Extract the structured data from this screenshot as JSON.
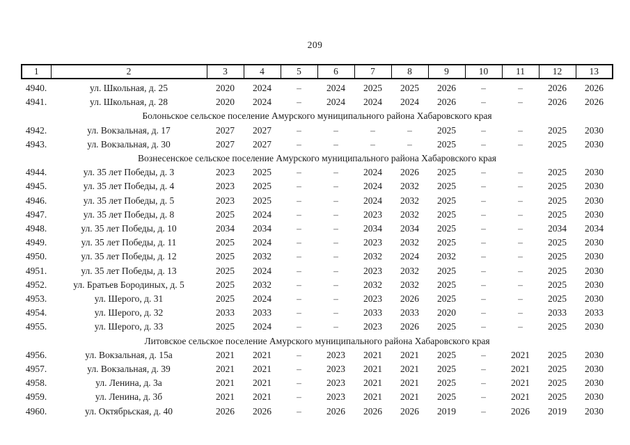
{
  "page": {
    "number": "209"
  },
  "table": {
    "header": [
      "1",
      "2",
      "3",
      "4",
      "5",
      "6",
      "7",
      "8",
      "9",
      "10",
      "11",
      "12",
      "13"
    ],
    "rows": [
      {
        "type": "data",
        "num": "4940.",
        "address": "ул. Школьная, д. 25",
        "values": [
          "2020",
          "2024",
          "–",
          "2024",
          "2025",
          "2025",
          "2026",
          "–",
          "–",
          "2026",
          "2026"
        ]
      },
      {
        "type": "data",
        "num": "4941.",
        "address": "ул. Школьная, д. 28",
        "values": [
          "2020",
          "2024",
          "–",
          "2024",
          "2024",
          "2024",
          "2026",
          "–",
          "–",
          "2026",
          "2026"
        ]
      },
      {
        "type": "section",
        "label": "Болоньское сельское поселение Амурского муниципального района Хабаровского края"
      },
      {
        "type": "data",
        "num": "4942.",
        "address": "ул. Вокзальная, д. 17",
        "values": [
          "2027",
          "2027",
          "–",
          "–",
          "–",
          "–",
          "2025",
          "–",
          "–",
          "2025",
          "2030"
        ]
      },
      {
        "type": "data",
        "num": "4943.",
        "address": "ул. Вокзальная, д. 30",
        "values": [
          "2027",
          "2027",
          "–",
          "–",
          "–",
          "–",
          "2025",
          "–",
          "–",
          "2025",
          "2030"
        ]
      },
      {
        "type": "section",
        "label": "Вознесенское сельское поселение Амурского муниципального района Хабаровского края"
      },
      {
        "type": "data",
        "num": "4944.",
        "address": "ул. 35 лет Победы, д. 3",
        "values": [
          "2023",
          "2025",
          "–",
          "–",
          "2024",
          "2026",
          "2025",
          "–",
          "–",
          "2025",
          "2030"
        ]
      },
      {
        "type": "data",
        "num": "4945.",
        "address": "ул. 35 лет Победы, д. 4",
        "values": [
          "2023",
          "2025",
          "–",
          "–",
          "2024",
          "2032",
          "2025",
          "–",
          "–",
          "2025",
          "2030"
        ]
      },
      {
        "type": "data",
        "num": "4946.",
        "address": "ул. 35 лет Победы, д. 5",
        "values": [
          "2023",
          "2025",
          "–",
          "–",
          "2024",
          "2032",
          "2025",
          "–",
          "–",
          "2025",
          "2030"
        ]
      },
      {
        "type": "data",
        "num": "4947.",
        "address": "ул. 35 лет Победы, д. 8",
        "values": [
          "2025",
          "2024",
          "–",
          "–",
          "2023",
          "2032",
          "2025",
          "–",
          "–",
          "2025",
          "2030"
        ]
      },
      {
        "type": "data",
        "num": "4948.",
        "address": "ул. 35 лет Победы, д. 10",
        "values": [
          "2034",
          "2034",
          "–",
          "–",
          "2034",
          "2034",
          "2025",
          "–",
          "–",
          "2034",
          "2034"
        ]
      },
      {
        "type": "data",
        "num": "4949.",
        "address": "ул. 35 лет Победы, д. 11",
        "values": [
          "2025",
          "2024",
          "–",
          "–",
          "2023",
          "2032",
          "2025",
          "–",
          "–",
          "2025",
          "2030"
        ]
      },
      {
        "type": "data",
        "num": "4950.",
        "address": "ул. 35 лет Победы, д. 12",
        "values": [
          "2025",
          "2032",
          "–",
          "–",
          "2032",
          "2024",
          "2032",
          "–",
          "–",
          "2025",
          "2030"
        ]
      },
      {
        "type": "data",
        "num": "4951.",
        "address": "ул. 35 лет Победы, д. 13",
        "values": [
          "2025",
          "2024",
          "–",
          "–",
          "2023",
          "2032",
          "2025",
          "–",
          "–",
          "2025",
          "2030"
        ]
      },
      {
        "type": "data",
        "num": "4952.",
        "address": "ул. Братьев Бородиных, д. 5",
        "values": [
          "2025",
          "2032",
          "–",
          "–",
          "2032",
          "2032",
          "2025",
          "–",
          "–",
          "2025",
          "2030"
        ]
      },
      {
        "type": "data",
        "num": "4953.",
        "address": "ул. Шерого, д. 31",
        "values": [
          "2025",
          "2024",
          "–",
          "–",
          "2023",
          "2026",
          "2025",
          "–",
          "–",
          "2025",
          "2030"
        ]
      },
      {
        "type": "data",
        "num": "4954.",
        "address": "ул. Шерого, д. 32",
        "values": [
          "2033",
          "2033",
          "–",
          "–",
          "2033",
          "2033",
          "2020",
          "–",
          "–",
          "2033",
          "2033"
        ]
      },
      {
        "type": "data",
        "num": "4955.",
        "address": "ул. Шерого, д. 33",
        "values": [
          "2025",
          "2024",
          "–",
          "–",
          "2023",
          "2026",
          "2025",
          "–",
          "–",
          "2025",
          "2030"
        ]
      },
      {
        "type": "section",
        "label": "Литовское сельское поселение Амурского муниципального района Хабаровского края"
      },
      {
        "type": "data",
        "num": "4956.",
        "address": "ул. Вокзальная, д. 15а",
        "values": [
          "2021",
          "2021",
          "–",
          "2023",
          "2021",
          "2021",
          "2025",
          "–",
          "2021",
          "2025",
          "2030"
        ]
      },
      {
        "type": "data",
        "num": "4957.",
        "address": "ул. Вокзальная, д. 39",
        "values": [
          "2021",
          "2021",
          "–",
          "2023",
          "2021",
          "2021",
          "2025",
          "–",
          "2021",
          "2025",
          "2030"
        ]
      },
      {
        "type": "data",
        "num": "4958.",
        "address": "ул. Ленина, д. 3а",
        "values": [
          "2021",
          "2021",
          "–",
          "2023",
          "2021",
          "2021",
          "2025",
          "–",
          "2021",
          "2025",
          "2030"
        ]
      },
      {
        "type": "data",
        "num": "4959.",
        "address": "ул. Ленина, д. 3б",
        "values": [
          "2021",
          "2021",
          "–",
          "2023",
          "2021",
          "2021",
          "2025",
          "–",
          "2021",
          "2025",
          "2030"
        ]
      },
      {
        "type": "data",
        "num": "4960.",
        "address": "ул. Октябрьская, д. 40",
        "values": [
          "2026",
          "2026",
          "–",
          "2026",
          "2026",
          "2026",
          "2019",
          "–",
          "2026",
          "2019",
          "2030"
        ]
      }
    ]
  }
}
